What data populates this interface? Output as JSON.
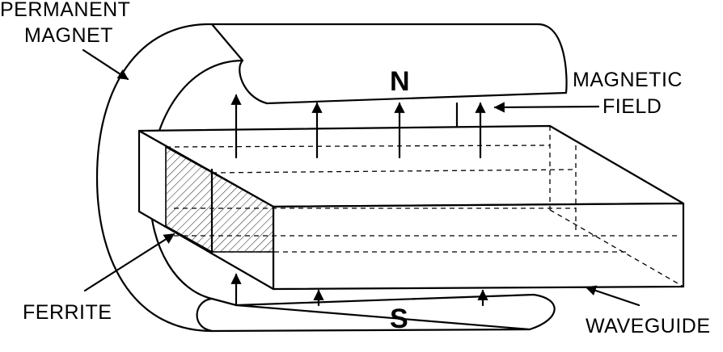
{
  "labels": {
    "permanent_magnet": [
      "PERMANENT",
      "MAGNET"
    ],
    "north_pole": "N",
    "south_pole": "S",
    "magnetic_field": [
      "MAGNETIC",
      "FIELD"
    ],
    "ferrite": "FERRITE",
    "waveguide": "WAVEGUIDE"
  }
}
